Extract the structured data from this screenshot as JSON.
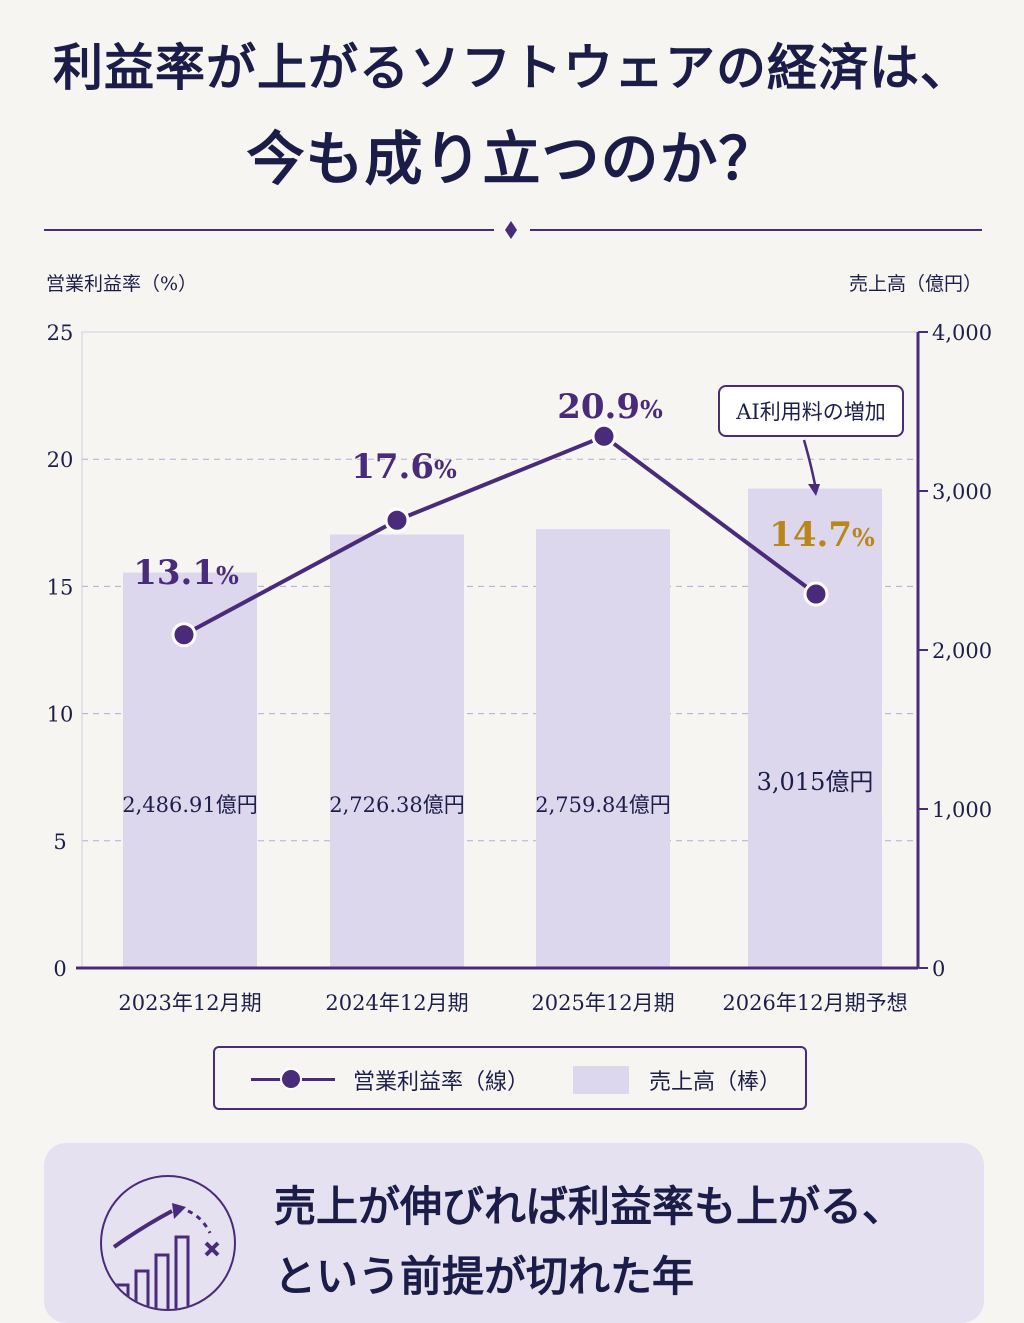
{
  "header": {
    "title_line1": "利益率が上がるソフトウェアの経済は、",
    "title_line2": "今も成り立つのか？"
  },
  "chart_data": {
    "type": "bar+line",
    "left_axis_label": "営業利益率（%）",
    "right_axis_label": "売上高（億円）",
    "left_ticks": [
      "0",
      "5",
      "10",
      "15",
      "20",
      "25"
    ],
    "right_ticks": [
      "0",
      "1,000",
      "2,000",
      "3,000",
      "4,000"
    ],
    "ylim_left": [
      0,
      25
    ],
    "ylim_right": [
      0,
      4000
    ],
    "categories": [
      "2023年12月期",
      "2024年12月期",
      "2025年12月期",
      "2026年12月期予想"
    ],
    "series": [
      {
        "name": "売上高（棒）",
        "type": "bar",
        "axis": "right",
        "values": [
          2486.91,
          2726.38,
          2759.84,
          3015
        ],
        "labels": [
          "2,486.91億円",
          "2,726.38億円",
          "2,759.84億円",
          "3,015億円"
        ]
      },
      {
        "name": "営業利益率（線）",
        "type": "line",
        "axis": "left",
        "values": [
          13.1,
          17.6,
          20.9,
          14.7
        ],
        "labels": [
          "13.1%",
          "17.6%",
          "20.9%",
          "14.7%"
        ]
      }
    ],
    "annotation": "AI利用料の増加",
    "grid": "horizontal-dashed",
    "colors": {
      "bar": "#ddd7ee",
      "line": "#4a2a7a",
      "highlight_label": "#b8861a",
      "axis": "#4a2a7a"
    }
  },
  "legend": {
    "line_label": "営業利益率（線）",
    "bar_label": "売上高（棒）"
  },
  "panel": {
    "line1": "売上が伸びれば利益率も上がる、",
    "line2": "という前提が切れた年"
  },
  "icons": {
    "panel_icon": "growth-chart-icon"
  }
}
